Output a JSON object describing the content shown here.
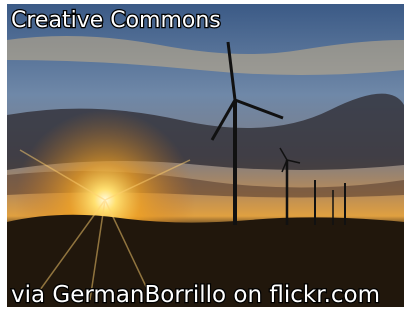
{
  "overlay": {
    "top_caption": "Creative Commons",
    "bottom_caption": "via GermanBorrillo on flickr.com"
  }
}
